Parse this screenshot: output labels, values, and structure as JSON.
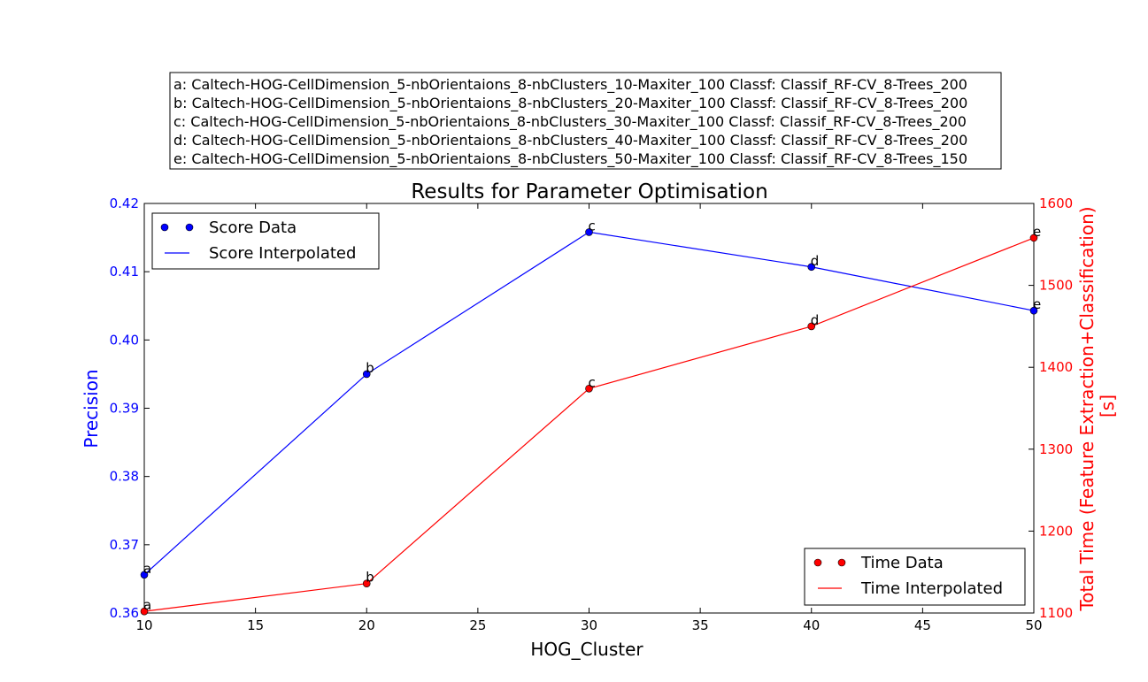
{
  "chart_data": {
    "type": "line",
    "title": "Results for Parameter Optimisation",
    "xlabel": "HOG_Cluster",
    "ylabel_left": "Precision",
    "ylabel_right_line1": "Total Time (Feature Extraction+Classification)",
    "ylabel_right_line2": "[s]",
    "xlim": [
      10,
      50
    ],
    "ylim_left": [
      0.36,
      0.42
    ],
    "ylim_right": [
      1100,
      1600
    ],
    "x_ticks": [
      10,
      15,
      20,
      25,
      30,
      35,
      40,
      45,
      50
    ],
    "left_ticks": [
      0.36,
      0.37,
      0.38,
      0.39,
      0.4,
      0.41,
      0.42
    ],
    "left_tick_labels": [
      "0.36",
      "0.37",
      "0.38",
      "0.39",
      "0.40",
      "0.41",
      "0.42"
    ],
    "right_ticks": [
      1100,
      1200,
      1300,
      1400,
      1500,
      1600
    ],
    "x": [
      10,
      20,
      30,
      40,
      50
    ],
    "point_labels": [
      "a",
      "b",
      "c",
      "d",
      "e"
    ],
    "series": [
      {
        "name": "Score Data",
        "axis": "left",
        "color": "#0000ff",
        "values": [
          0.3656,
          0.395,
          0.4158,
          0.4107,
          0.4043
        ]
      },
      {
        "name": "Time Data",
        "axis": "right",
        "color": "#ff0000",
        "values": [
          1102,
          1136,
          1374,
          1450,
          1558
        ]
      }
    ],
    "legends": {
      "score": {
        "placement": "top-left",
        "marker_label": "Score Data",
        "line_label": "Score Interpolated"
      },
      "time": {
        "placement": "bottom-right",
        "marker_label": "Time Data",
        "line_label": "Time Interpolated"
      }
    },
    "parameter_info": [
      "a: Caltech-HOG-CellDimension_5-nbOrientaions_8-nbClusters_10-Maxiter_100 Classf: Classif_RF-CV_8-Trees_200",
      "b: Caltech-HOG-CellDimension_5-nbOrientaions_8-nbClusters_20-Maxiter_100 Classf: Classif_RF-CV_8-Trees_200",
      "c: Caltech-HOG-CellDimension_5-nbOrientaions_8-nbClusters_30-Maxiter_100 Classf: Classif_RF-CV_8-Trees_200",
      "d: Caltech-HOG-CellDimension_5-nbOrientaions_8-nbClusters_40-Maxiter_100 Classf: Classif_RF-CV_8-Trees_200",
      "e: Caltech-HOG-CellDimension_5-nbOrientaions_8-nbClusters_50-Maxiter_100 Classf: Classif_RF-CV_8-Trees_150"
    ],
    "grid": false
  }
}
